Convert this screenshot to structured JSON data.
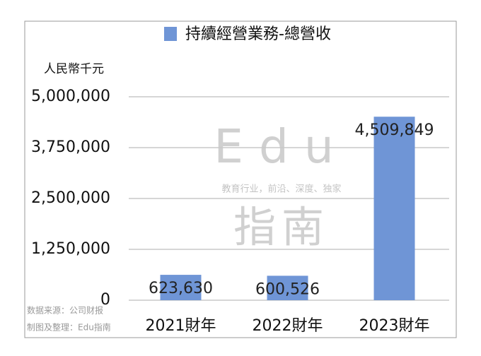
{
  "chart_data": {
    "type": "bar",
    "title": "持續經營業務-總營收",
    "y_label": "人民幣千元",
    "categories": [
      "2021財年",
      "2022財年",
      "2023財年"
    ],
    "series": [
      {
        "name": "持續經營業務-總營收",
        "color": "#6f95d6",
        "values": [
          623630,
          600526,
          4509849
        ],
        "value_labels": [
          "623,630",
          "600,526",
          "4,509,849"
        ]
      }
    ],
    "ylim": [
      0,
      5000000
    ],
    "yticks": [
      0,
      {
        "value": 1250000,
        "label": "1,250,000"
      },
      {
        "value": 2500000,
        "label": "2,500,000"
      },
      {
        "value": 3750000,
        "label": "3,750,000"
      },
      {
        "value": 5000000,
        "label": "5,000,000"
      }
    ],
    "grid": true,
    "legend": "top",
    "watermark": {
      "brand": "Edu",
      "tagline": "教育行业，前沿、深度、独家",
      "brand_cn": "指南"
    },
    "source": [
      "数据来源：公司财报",
      "制图及整理：Edu指南"
    ]
  }
}
